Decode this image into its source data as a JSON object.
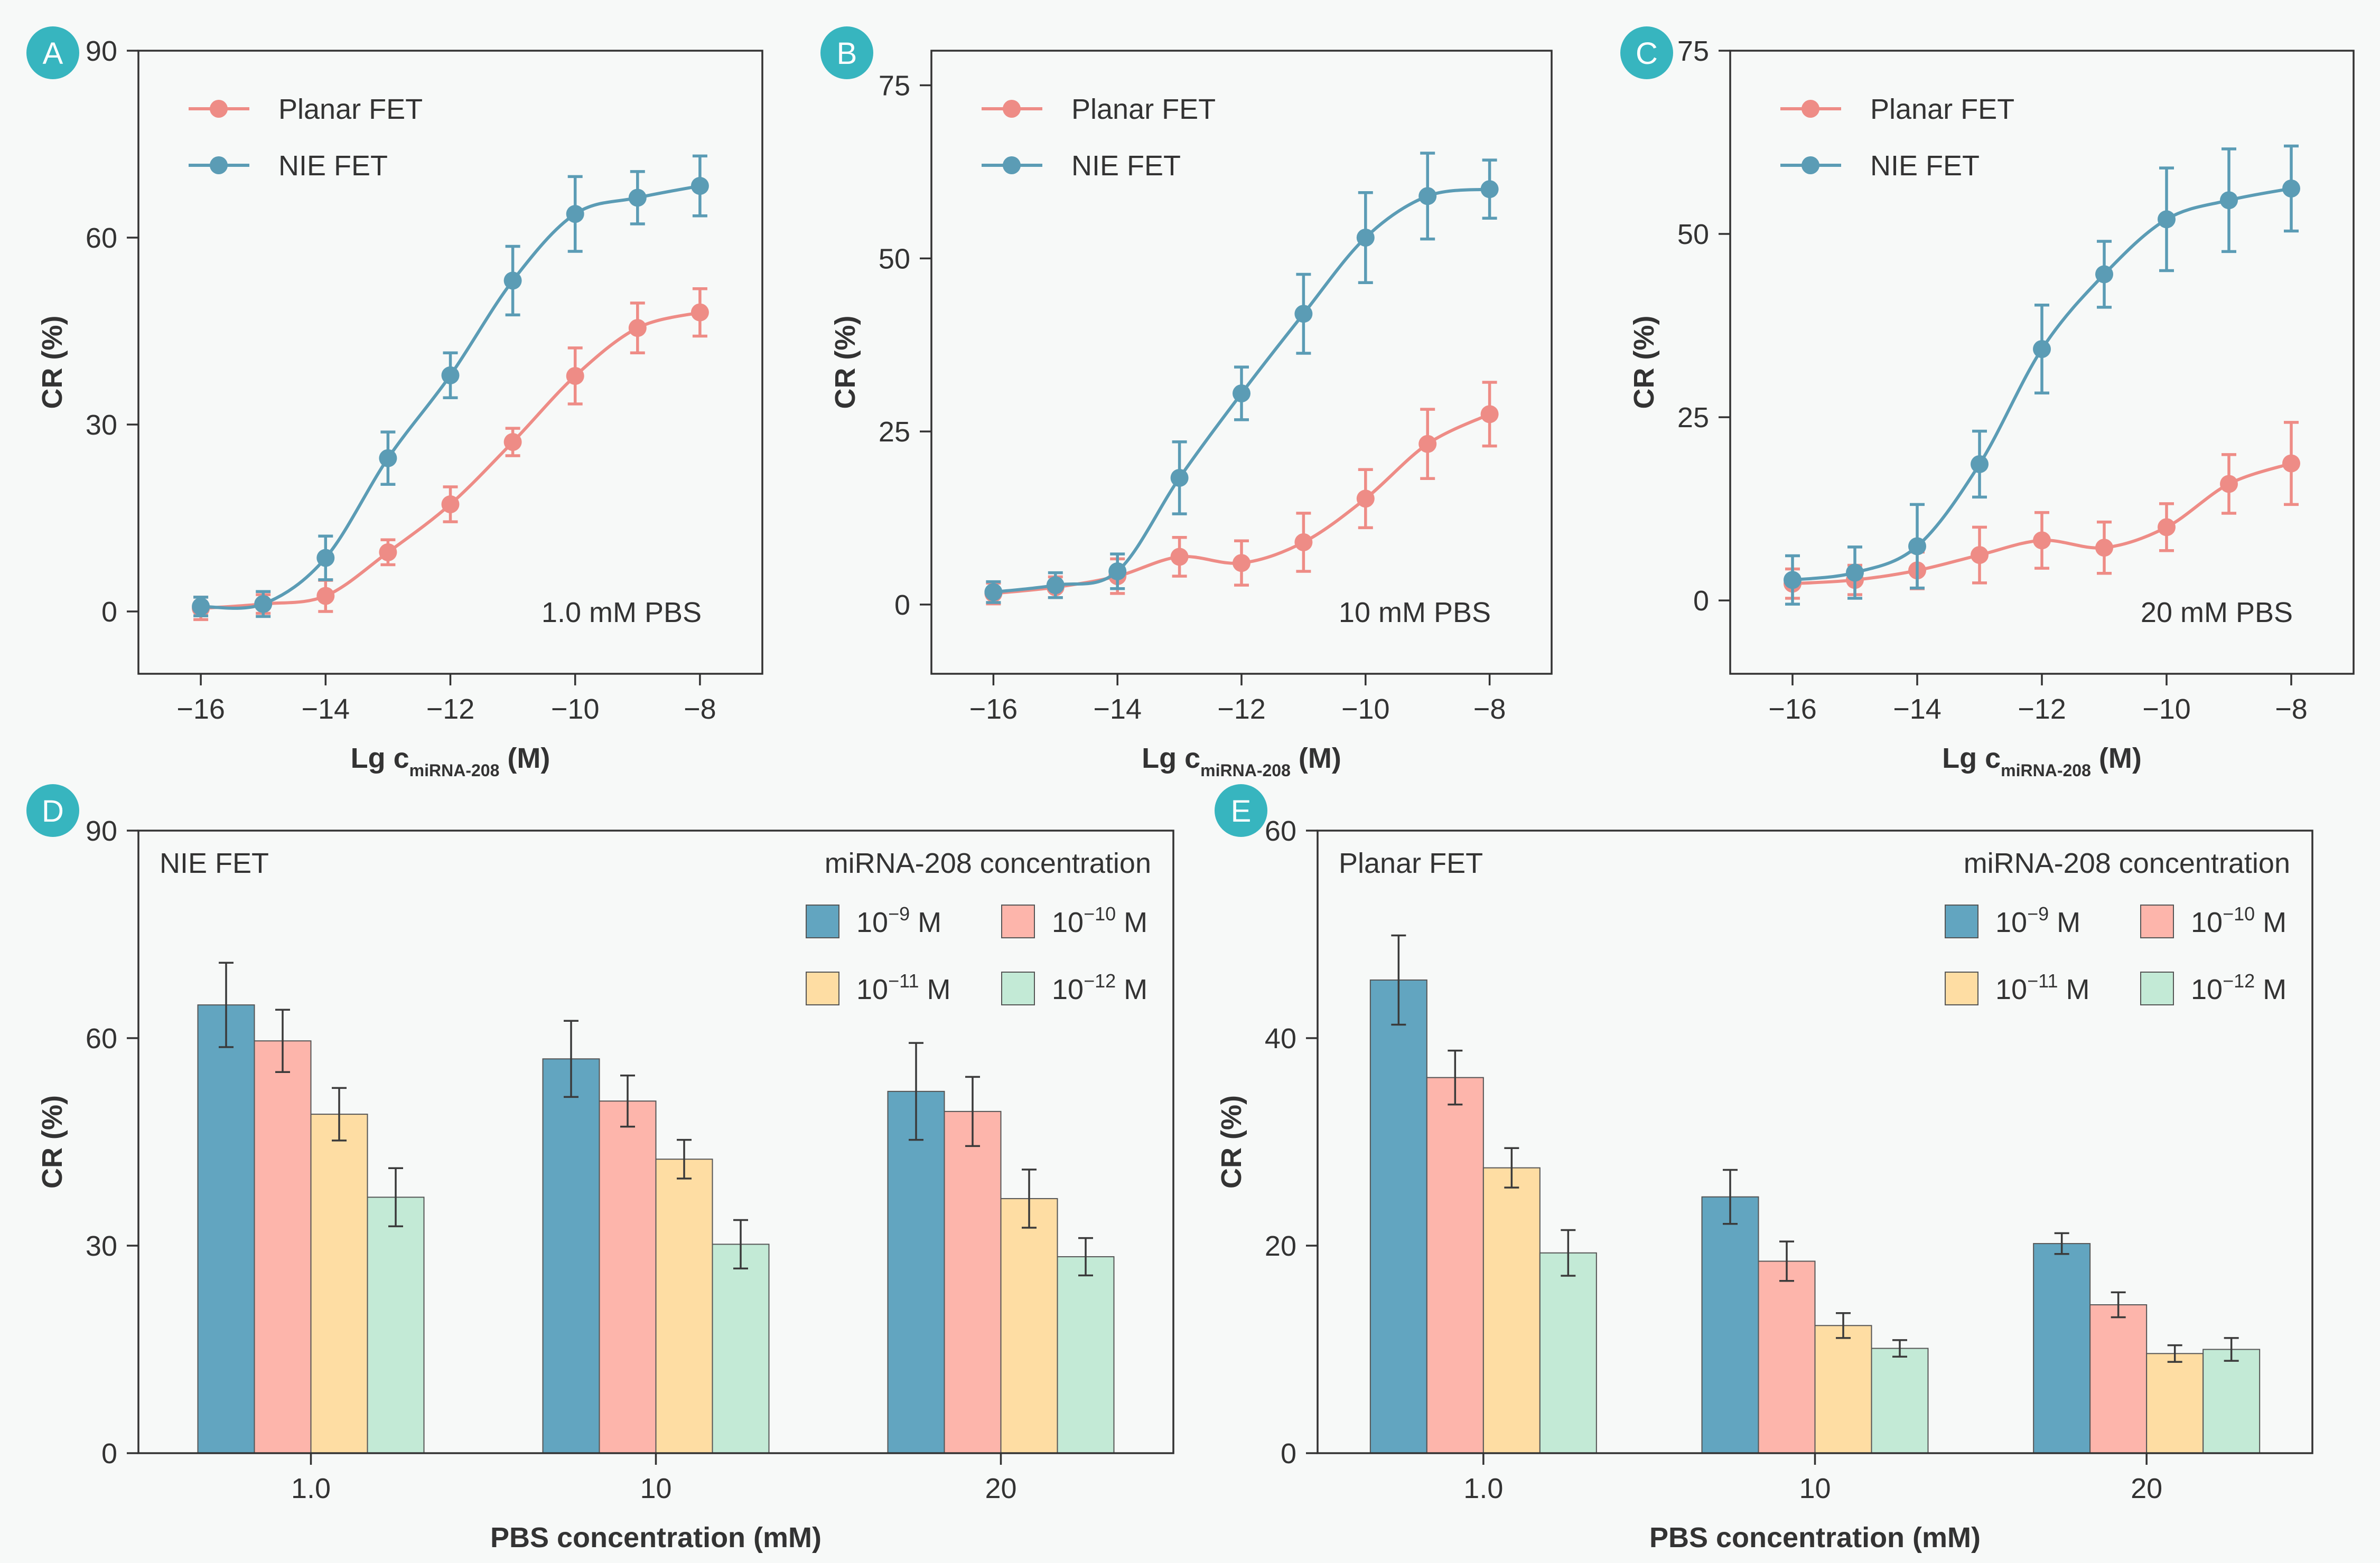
{
  "colors": {
    "nie": "#5b9cb5",
    "planar": "#ee8c86",
    "bar_1e9": "#62a5c0",
    "bar_1e10": "#fdb5ab",
    "bar_1e11": "#fedda3",
    "bar_1e12": "#c3ead6",
    "badge": "#37b5bf",
    "axis": "#333333",
    "background": "#f7f9f8"
  },
  "chart_data": [
    {
      "panel": "A",
      "type": "line",
      "annotation": "1.0 mM PBS",
      "ylabel": "CR (%)",
      "xlabel_main": "Lg c",
      "xlabel_sub": "miRNA-208",
      "xlabel_unit": " (M)",
      "xlim": [
        -17,
        -7
      ],
      "ylim": [
        -10,
        90
      ],
      "xticks": [
        -16,
        -14,
        -12,
        -10,
        -8
      ],
      "xtick_labels": [
        "−16",
        "−14",
        "−12",
        "−10",
        "−8"
      ],
      "yticks": [
        0,
        30,
        60,
        90
      ],
      "ytick_labels": [
        "0",
        "30",
        "60",
        "90"
      ],
      "x": [
        -16,
        -15,
        -14,
        -13,
        -12,
        -11,
        -10,
        -9,
        -8
      ],
      "series": [
        {
          "name": "Planar FET",
          "color_key": "planar",
          "values": [
            0.5,
            1.2,
            2.5,
            9.5,
            17.2,
            27.2,
            37.8,
            45.5,
            48.0
          ],
          "errors": [
            1.8,
            1.5,
            2.5,
            2.0,
            2.8,
            2.2,
            4.5,
            4.0,
            3.8
          ]
        },
        {
          "name": "NIE FET",
          "color_key": "nie",
          "values": [
            0.8,
            1.2,
            8.6,
            24.6,
            37.9,
            53.1,
            63.8,
            66.4,
            68.3
          ],
          "errors": [
            1.5,
            2.0,
            3.5,
            4.2,
            3.6,
            5.5,
            6.0,
            4.2,
            4.8
          ]
        }
      ]
    },
    {
      "panel": "B",
      "type": "line",
      "annotation": "10 mM PBS",
      "ylabel": "CR (%)",
      "xlabel_main": "Lg c",
      "xlabel_sub": "miRNA-208",
      "xlabel_unit": " (M)",
      "xlim": [
        -17,
        -7
      ],
      "ylim": [
        -10,
        80
      ],
      "xticks": [
        -16,
        -14,
        -12,
        -10,
        -8
      ],
      "xtick_labels": [
        "−16",
        "−14",
        "−12",
        "−10",
        "−8"
      ],
      "yticks": [
        0,
        25,
        50,
        75
      ],
      "ytick_labels": [
        "0",
        "25",
        "50",
        "75"
      ],
      "x": [
        -16,
        -15,
        -14,
        -13,
        -12,
        -11,
        -10,
        -9,
        -8
      ],
      "series": [
        {
          "name": "Planar FET",
          "color_key": "planar",
          "values": [
            1.6,
            2.5,
            4.1,
            6.9,
            6.0,
            9.0,
            15.3,
            23.2,
            27.5
          ],
          "errors": [
            1.5,
            1.5,
            2.5,
            2.8,
            3.2,
            4.2,
            4.2,
            5.0,
            4.6
          ]
        },
        {
          "name": "NIE FET",
          "color_key": "nie",
          "values": [
            1.8,
            2.8,
            4.8,
            18.3,
            30.5,
            42.0,
            53.0,
            59.0,
            60.0
          ],
          "errors": [
            1.5,
            1.8,
            2.5,
            5.2,
            3.8,
            5.7,
            6.5,
            6.2,
            4.2
          ]
        }
      ]
    },
    {
      "panel": "C",
      "type": "line",
      "annotation": "20 mM PBS",
      "ylabel": "CR (%)",
      "xlabel_main": "Lg c",
      "xlabel_sub": "miRNA-208",
      "xlabel_unit": " (M)",
      "xlim": [
        -17,
        -7
      ],
      "ylim": [
        -10,
        75
      ],
      "xticks": [
        -16,
        -14,
        -12,
        -10,
        -8
      ],
      "xtick_labels": [
        "−16",
        "−14",
        "−12",
        "−10",
        "−8"
      ],
      "yticks": [
        0,
        25,
        50,
        75
      ],
      "ytick_labels": [
        "0",
        "25",
        "50",
        "75"
      ],
      "x": [
        -16,
        -15,
        -14,
        -13,
        -12,
        -11,
        -10,
        -9,
        -8
      ],
      "series": [
        {
          "name": "Planar FET",
          "color_key": "planar",
          "values": [
            2.3,
            2.8,
            4.1,
            6.2,
            8.2,
            7.2,
            10.0,
            15.9,
            18.7
          ],
          "errors": [
            2.0,
            2.0,
            2.5,
            3.8,
            3.8,
            3.5,
            3.2,
            4.0,
            5.6
          ]
        },
        {
          "name": "NIE FET",
          "color_key": "nie",
          "values": [
            2.8,
            3.8,
            7.4,
            18.6,
            34.3,
            44.5,
            52.0,
            54.6,
            56.2
          ],
          "errors": [
            3.3,
            3.5,
            5.7,
            4.5,
            6.0,
            4.5,
            7.0,
            7.0,
            5.8
          ]
        }
      ]
    },
    {
      "panel": "D",
      "type": "bar",
      "title": "NIE FET",
      "legend_title": "miRNA-208 concentration",
      "ylabel": "CR (%)",
      "xlabel": "PBS concentration (mM)",
      "ylim": [
        0,
        90
      ],
      "yticks": [
        0,
        30,
        60,
        90
      ],
      "ytick_labels": [
        "0",
        "30",
        "60",
        "90"
      ],
      "categories": [
        "1.0",
        "10",
        "20"
      ],
      "series": [
        {
          "name": "10−9 M",
          "base": "10",
          "exp": "−9",
          "unit": " M",
          "color_key": "bar_1e9",
          "values": [
            64.8,
            57.0,
            52.3
          ],
          "errors": [
            6.1,
            5.5,
            7.0
          ]
        },
        {
          "name": "10−10 M",
          "base": "10",
          "exp": "−10",
          "unit": " M",
          "color_key": "bar_1e10",
          "values": [
            59.6,
            50.9,
            49.4
          ],
          "errors": [
            4.5,
            3.7,
            5.0
          ]
        },
        {
          "name": "10−11 M",
          "base": "10",
          "exp": "−11",
          "unit": " M",
          "color_key": "bar_1e11",
          "values": [
            49.0,
            42.5,
            36.8
          ],
          "errors": [
            3.8,
            2.8,
            4.2
          ]
        },
        {
          "name": "10−12 M",
          "base": "10",
          "exp": "−12",
          "unit": " M",
          "color_key": "bar_1e12",
          "values": [
            37.0,
            30.2,
            28.4
          ],
          "errors": [
            4.2,
            3.5,
            2.7
          ]
        }
      ]
    },
    {
      "panel": "E",
      "type": "bar",
      "title": "Planar FET",
      "legend_title": "miRNA-208 concentration",
      "ylabel": "CR (%)",
      "xlabel": "PBS concentration (mM)",
      "ylim": [
        0,
        60
      ],
      "yticks": [
        0,
        20,
        40,
        60
      ],
      "ytick_labels": [
        "0",
        "20",
        "40",
        "60"
      ],
      "categories": [
        "1.0",
        "10",
        "20"
      ],
      "series": [
        {
          "name": "10−9 M",
          "base": "10",
          "exp": "−9",
          "unit": " M",
          "color_key": "bar_1e9",
          "values": [
            45.6,
            24.7,
            20.2
          ],
          "errors": [
            4.3,
            2.6,
            1.0
          ]
        },
        {
          "name": "10−10 M",
          "base": "10",
          "exp": "−10",
          "unit": " M",
          "color_key": "bar_1e10",
          "values": [
            36.2,
            18.5,
            14.3
          ],
          "errors": [
            2.6,
            1.9,
            1.2
          ]
        },
        {
          "name": "10−11 M",
          "base": "10",
          "exp": "−11",
          "unit": " M",
          "color_key": "bar_1e11",
          "values": [
            27.5,
            12.3,
            9.6
          ],
          "errors": [
            1.9,
            1.2,
            0.8
          ]
        },
        {
          "name": "10−12 M",
          "base": "10",
          "exp": "−12",
          "unit": " M",
          "color_key": "bar_1e12",
          "values": [
            19.3,
            10.1,
            10.0
          ],
          "errors": [
            2.2,
            0.8,
            1.1
          ]
        }
      ]
    }
  ]
}
